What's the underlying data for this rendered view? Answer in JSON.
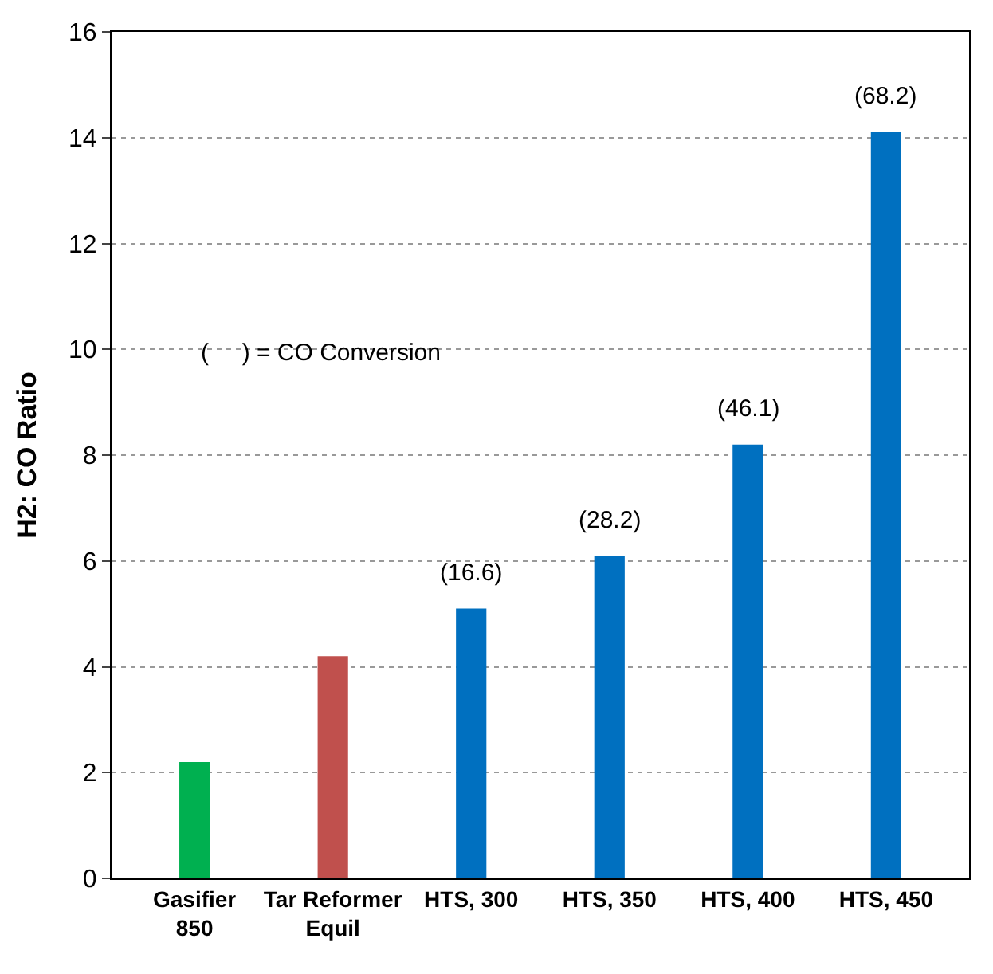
{
  "chart_data": {
    "type": "bar",
    "ylabel": "H2: CO Ratio",
    "categories": [
      "Gasifier\n850",
      "Tar Reformer\nEquil",
      "HTS, 300",
      "HTS, 350",
      "HTS, 400",
      "HTS, 450"
    ],
    "values": [
      2.2,
      4.2,
      5.1,
      6.1,
      8.2,
      14.1
    ],
    "colors": [
      "#00b050",
      "#c0504d",
      "#0070c0",
      "#0070c0",
      "#0070c0",
      "#0070c0"
    ],
    "ylim": [
      0,
      16
    ],
    "yticks": [
      0,
      2,
      4,
      6,
      8,
      10,
      12,
      14,
      16
    ],
    "grid": "y",
    "annotations": [
      "(     ) = CO Conversion",
      {
        "text": "(16.6)",
        "x": "HTS, 300",
        "y": 5.1
      },
      {
        "text": "(28.2)",
        "x": "HTS, 350",
        "y": 6.1
      },
      {
        "text": "(46.1)",
        "x": "HTS, 400",
        "y": 8.2
      },
      {
        "text": "(68.2)",
        "x": "HTS, 450",
        "y": 14.1
      }
    ]
  }
}
